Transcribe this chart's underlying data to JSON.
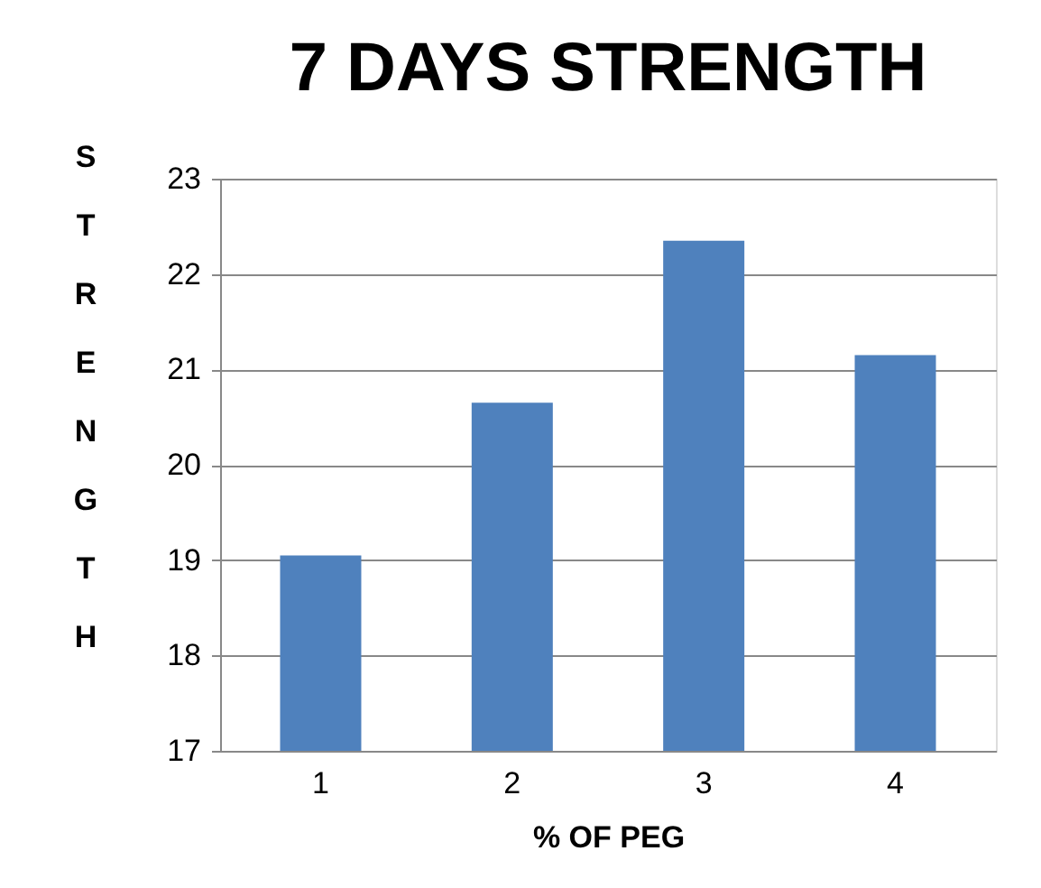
{
  "chart_data": {
    "type": "bar",
    "title": "7 DAYS STRENGTH",
    "xlabel": "% OF PEG",
    "ylabel": "STRENGTH",
    "categories": [
      "1",
      "2",
      "3",
      "4"
    ],
    "values": [
      19.05,
      20.65,
      22.35,
      21.15
    ],
    "color": "#4f81bd",
    "ylim": [
      17,
      23
    ],
    "yticks": [
      17,
      18,
      19,
      20,
      21,
      22,
      23
    ],
    "grid": "y"
  }
}
